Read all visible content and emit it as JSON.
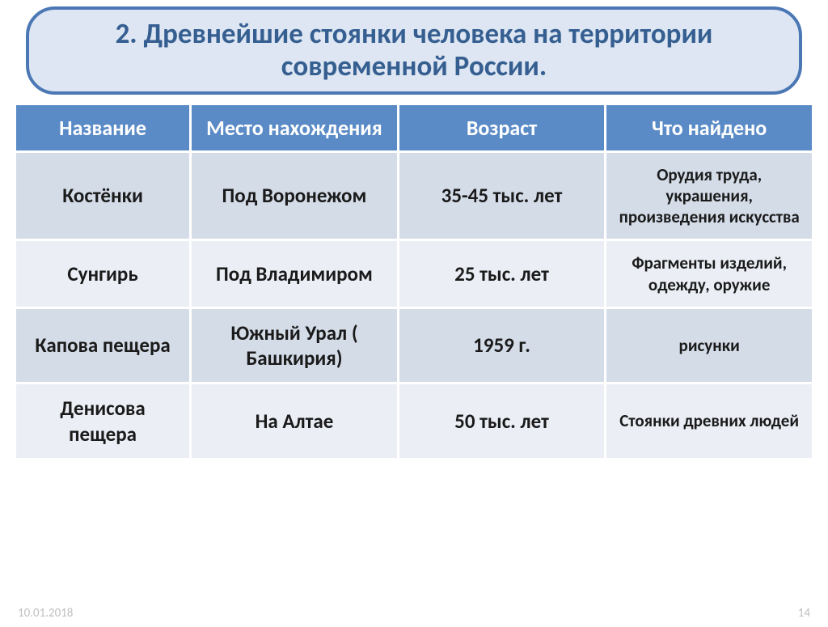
{
  "title": "2. Древнейшие стоянки человека на территории современной России.",
  "colors": {
    "title_bg": "#dde6f2",
    "title_border": "#4b78b5",
    "title_text": "#365f91",
    "header_bg": "#5b8bc7",
    "header_text": "#ffffff",
    "row_band_a": "#d4dce8",
    "row_band_b": "#ebeef5",
    "cell_text": "#1a1a1a",
    "footer_text": "#bfbfbf",
    "cell_border": "#ffffff"
  },
  "table": {
    "columns": [
      "Название",
      "Место нахождения",
      "Возраст",
      "Что найдено"
    ],
    "col_widths_pct": [
      22,
      26,
      26,
      26
    ],
    "header_fontsize": 26,
    "cell_fontsize_main": 25,
    "cell_fontsize_found": 21,
    "rows": [
      {
        "name": "Костёнки",
        "location": "Под Воронежом",
        "age": "35-45 тыс. лет",
        "found": "Орудия труда, украшения, произведения искусства"
      },
      {
        "name": "Сунгирь",
        "location": "Под Владимиром",
        "age": "25 тыс. лет",
        "found": "Фрагменты изделий, одежду, оружие"
      },
      {
        "name": "Капова пещера",
        "location": "Южный Урал ( Башкирия)",
        "age": "1959 г.",
        "found": "рисунки"
      },
      {
        "name": "Денисова пещера",
        "location": "На Алтае",
        "age": "50 тыс. лет",
        "found": "Стоянки древних людей"
      }
    ]
  },
  "footer": {
    "date": "10.01.2018",
    "page": "14"
  }
}
